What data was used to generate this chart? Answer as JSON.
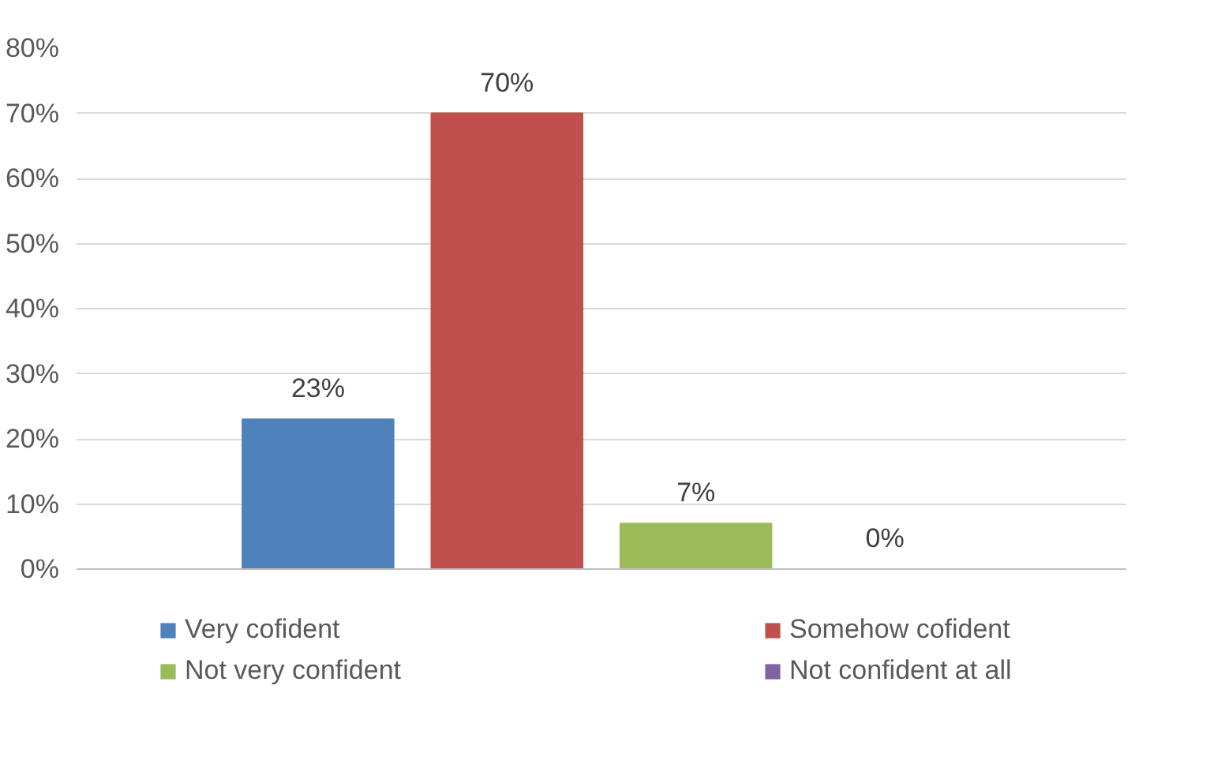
{
  "chart_data": {
    "type": "bar",
    "categories": [
      null
    ],
    "series": [
      {
        "name": "Very cofident",
        "color": "#4f81bd",
        "values": [
          23
        ],
        "value_labels": [
          "23%"
        ]
      },
      {
        "name": "Somehow cofident",
        "color": "#c0504d",
        "values": [
          70
        ],
        "value_labels": [
          "70%"
        ]
      },
      {
        "name": "Not very confident",
        "color": "#9bbb59",
        "values": [
          7
        ],
        "value_labels": [
          "7%"
        ]
      },
      {
        "name": "Not confident at all",
        "color": "#8064a2",
        "values": [
          0
        ],
        "value_labels": [
          "0%"
        ]
      }
    ],
    "ylim": [
      0,
      80
    ],
    "yticks": [
      {
        "value": 0,
        "label": "0%"
      },
      {
        "value": 10,
        "label": "10%"
      },
      {
        "value": 20,
        "label": "20%"
      },
      {
        "value": 30,
        "label": "30%"
      },
      {
        "value": 40,
        "label": "40%"
      },
      {
        "value": 50,
        "label": "50%"
      },
      {
        "value": 60,
        "label": "60%"
      },
      {
        "value": 70,
        "label": "70%"
      },
      {
        "value": 80,
        "label": "80%"
      }
    ],
    "grid": "y",
    "legend": "bottom"
  }
}
